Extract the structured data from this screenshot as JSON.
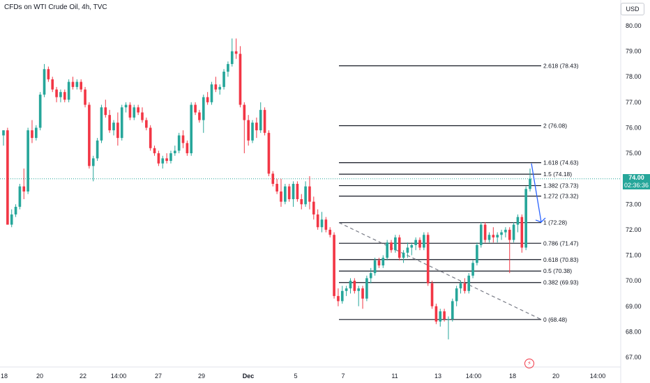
{
  "header": {
    "title": "CFDs on WTI Crude Oil, 4h, TVC",
    "currency": "USD"
  },
  "price_tag": {
    "price": "74.00",
    "countdown": "02:36:36"
  },
  "colors": {
    "up": "#26a69a",
    "down": "#f23645",
    "fib": "#131722",
    "trend": "#787b86",
    "arrow": "#2962ff"
  },
  "icons": {
    "bolt": "lightning-bolt-icon"
  },
  "chart_data": {
    "type": "candlestick",
    "symbol": "CFDs on WTI Crude Oil",
    "timeframe": "4h",
    "ylim": [
      66.8,
      80.2
    ],
    "y_ticks": [
      "67.00",
      "68.00",
      "69.00",
      "70.00",
      "71.00",
      "72.00",
      "73.00",
      "74.00",
      "75.00",
      "76.00",
      "77.00",
      "78.00",
      "79.00",
      "80.00"
    ],
    "x_ticks": [
      "18",
      "20",
      "22",
      "14:00",
      "27",
      "29",
      "Dec",
      "5",
      "7",
      "11",
      "13",
      "14:00",
      "18",
      "20",
      "14:00"
    ],
    "last_price": 74.0,
    "fibonacci": [
      {
        "label": "0 (68.48)",
        "level": 68.48
      },
      {
        "label": "0.382 (69.93)",
        "level": 69.93
      },
      {
        "label": "0.5 (70.38)",
        "level": 70.38
      },
      {
        "label": "0.618 (70.83)",
        "level": 70.83
      },
      {
        "label": "0.786 (71.47)",
        "level": 71.47
      },
      {
        "label": "1 (72.28)",
        "level": 72.28
      },
      {
        "label": "1.272 (73.32)",
        "level": 73.32
      },
      {
        "label": "1.382 (73.73)",
        "level": 73.73
      },
      {
        "label": "1.5 (74.18)",
        "level": 74.18
      },
      {
        "label": "1.618 (74.63)",
        "level": 74.63
      },
      {
        "label": "2 (76.08)",
        "level": 76.08
      },
      {
        "label": "2.618 (78.43)",
        "level": 78.43
      }
    ],
    "trend_line": {
      "from": 72.28,
      "to": 68.48,
      "style": "dashed"
    },
    "projection_arrow": {
      "from": 74.6,
      "to": 72.3
    },
    "candles": [
      [
        75.7,
        75.9,
        75.3,
        75.9
      ],
      [
        75.9,
        76.0,
        72.2,
        72.2
      ],
      [
        72.2,
        72.8,
        72.1,
        72.6
      ],
      [
        72.6,
        73.0,
        72.5,
        72.9
      ],
      [
        72.9,
        73.8,
        72.8,
        73.7
      ],
      [
        73.7,
        74.4,
        73.2,
        73.5
      ],
      [
        73.5,
        76.0,
        73.4,
        75.9
      ],
      [
        75.9,
        76.3,
        75.4,
        75.6
      ],
      [
        75.6,
        76.1,
        75.5,
        76.0
      ],
      [
        76.0,
        77.4,
        75.9,
        77.3
      ],
      [
        77.3,
        78.5,
        77.2,
        78.3
      ],
      [
        78.3,
        78.4,
        77.8,
        77.9
      ],
      [
        77.9,
        78.0,
        77.4,
        77.5
      ],
      [
        77.5,
        77.6,
        77.0,
        77.2
      ],
      [
        77.2,
        77.5,
        77.0,
        77.4
      ],
      [
        77.4,
        77.5,
        77.0,
        77.1
      ],
      [
        77.1,
        77.9,
        77.0,
        77.8
      ],
      [
        77.8,
        78.0,
        77.5,
        77.6
      ],
      [
        77.6,
        77.9,
        77.5,
        77.8
      ],
      [
        77.8,
        77.9,
        77.4,
        77.5
      ],
      [
        77.5,
        77.6,
        76.8,
        76.9
      ],
      [
        76.9,
        77.0,
        74.4,
        74.5
      ],
      [
        74.5,
        74.9,
        73.9,
        74.8
      ],
      [
        74.8,
        75.6,
        74.7,
        75.5
      ],
      [
        75.5,
        76.9,
        75.4,
        76.8
      ],
      [
        76.8,
        77.1,
        76.4,
        76.5
      ],
      [
        76.5,
        76.7,
        75.8,
        75.9
      ],
      [
        75.9,
        76.3,
        75.7,
        76.2
      ],
      [
        76.2,
        76.6,
        75.3,
        75.6
      ],
      [
        75.6,
        76.9,
        75.5,
        76.8
      ],
      [
        76.8,
        77.0,
        76.6,
        76.9
      ],
      [
        76.9,
        77.0,
        76.3,
        76.4
      ],
      [
        76.4,
        76.9,
        76.3,
        76.8
      ],
      [
        76.8,
        76.9,
        76.5,
        76.6
      ],
      [
        76.6,
        76.8,
        76.2,
        76.3
      ],
      [
        76.3,
        76.4,
        75.9,
        76.0
      ],
      [
        76.0,
        76.1,
        75.1,
        75.2
      ],
      [
        75.2,
        75.3,
        74.9,
        75.0
      ],
      [
        75.0,
        75.1,
        74.5,
        74.6
      ],
      [
        74.6,
        74.9,
        74.4,
        74.8
      ],
      [
        74.8,
        75.0,
        74.6,
        74.7
      ],
      [
        74.7,
        75.1,
        74.6,
        75.0
      ],
      [
        75.0,
        75.3,
        74.9,
        75.1
      ],
      [
        75.1,
        75.8,
        75.0,
        75.7
      ],
      [
        75.7,
        75.9,
        75.2,
        75.4
      ],
      [
        75.4,
        75.5,
        74.9,
        75.0
      ],
      [
        75.0,
        77.0,
        74.9,
        76.9
      ],
      [
        76.9,
        77.0,
        76.5,
        76.6
      ],
      [
        76.6,
        76.7,
        76.2,
        76.3
      ],
      [
        76.3,
        77.3,
        75.8,
        77.2
      ],
      [
        77.2,
        77.4,
        76.9,
        77.0
      ],
      [
        77.0,
        77.8,
        76.9,
        77.7
      ],
      [
        77.7,
        78.0,
        77.4,
        77.5
      ],
      [
        77.5,
        77.7,
        77.3,
        77.6
      ],
      [
        77.6,
        78.3,
        77.5,
        78.2
      ],
      [
        78.2,
        78.6,
        78.0,
        78.5
      ],
      [
        78.5,
        79.5,
        78.4,
        79.0
      ],
      [
        79.0,
        79.5,
        78.7,
        78.9
      ],
      [
        78.9,
        79.2,
        76.8,
        76.9
      ],
      [
        76.9,
        77.0,
        75.0,
        76.3
      ],
      [
        76.3,
        76.5,
        75.3,
        75.5
      ],
      [
        75.5,
        76.3,
        75.4,
        76.2
      ],
      [
        76.2,
        76.4,
        75.6,
        75.9
      ],
      [
        75.9,
        77.0,
        75.8,
        76.7
      ],
      [
        76.7,
        76.8,
        75.7,
        75.8
      ],
      [
        75.8,
        75.9,
        74.1,
        74.2
      ],
      [
        74.2,
        74.3,
        73.7,
        73.8
      ],
      [
        73.8,
        74.0,
        73.4,
        73.5
      ],
      [
        73.5,
        74.0,
        72.9,
        73.1
      ],
      [
        73.1,
        73.8,
        73.0,
        73.7
      ],
      [
        73.7,
        73.8,
        73.1,
        73.2
      ],
      [
        73.2,
        73.9,
        72.9,
        73.8
      ],
      [
        73.8,
        73.9,
        73.1,
        73.2
      ],
      [
        73.2,
        73.4,
        72.8,
        73.0
      ],
      [
        73.0,
        73.9,
        72.9,
        73.7
      ],
      [
        73.7,
        74.1,
        72.8,
        73.1
      ],
      [
        73.1,
        73.3,
        72.4,
        72.6
      ],
      [
        72.6,
        72.8,
        72.0,
        72.1
      ],
      [
        72.1,
        72.7,
        71.9,
        72.4
      ],
      [
        72.4,
        72.5,
        71.9,
        72.0
      ],
      [
        72.0,
        72.1,
        71.7,
        71.8
      ],
      [
        71.8,
        71.9,
        69.3,
        69.4
      ],
      [
        69.4,
        69.7,
        69.0,
        69.2
      ],
      [
        69.2,
        69.8,
        69.1,
        69.6
      ],
      [
        69.6,
        69.8,
        69.4,
        69.7
      ],
      [
        69.7,
        70.1,
        69.5,
        70.0
      ],
      [
        70.0,
        70.1,
        69.5,
        69.6
      ],
      [
        69.6,
        69.8,
        69.0,
        69.7
      ],
      [
        69.7,
        69.8,
        68.9,
        69.3
      ],
      [
        69.3,
        70.2,
        69.2,
        70.1
      ],
      [
        70.1,
        70.5,
        69.9,
        70.3
      ],
      [
        70.3,
        70.9,
        70.2,
        70.8
      ],
      [
        70.8,
        70.9,
        70.5,
        70.6
      ],
      [
        70.6,
        71.0,
        70.5,
        70.9
      ],
      [
        70.9,
        71.6,
        70.8,
        71.5
      ],
      [
        71.5,
        71.6,
        71.1,
        71.2
      ],
      [
        71.2,
        71.8,
        71.1,
        71.7
      ],
      [
        71.7,
        71.8,
        70.8,
        70.9
      ],
      [
        70.9,
        71.2,
        70.7,
        71.1
      ],
      [
        71.1,
        71.5,
        70.9,
        71.3
      ],
      [
        71.3,
        71.5,
        71.0,
        71.4
      ],
      [
        71.4,
        71.7,
        71.2,
        71.6
      ],
      [
        71.6,
        71.7,
        71.2,
        71.3
      ],
      [
        71.3,
        71.9,
        71.2,
        71.8
      ],
      [
        71.8,
        71.9,
        69.8,
        69.9
      ],
      [
        69.9,
        70.0,
        68.9,
        69.0
      ],
      [
        69.0,
        69.1,
        68.3,
        68.4
      ],
      [
        68.4,
        68.9,
        68.2,
        68.8
      ],
      [
        68.8,
        68.9,
        68.4,
        68.5
      ],
      [
        68.5,
        68.6,
        67.7,
        68.5
      ],
      [
        68.5,
        69.3,
        68.4,
        69.2
      ],
      [
        69.2,
        69.8,
        69.0,
        69.7
      ],
      [
        69.7,
        70.0,
        69.5,
        69.9
      ],
      [
        69.9,
        70.1,
        69.5,
        69.6
      ],
      [
        69.6,
        70.3,
        69.5,
        70.2
      ],
      [
        70.2,
        70.8,
        70.1,
        70.7
      ],
      [
        70.7,
        71.5,
        70.6,
        71.4
      ],
      [
        71.4,
        72.3,
        71.3,
        72.2
      ],
      [
        72.2,
        72.3,
        71.5,
        71.6
      ],
      [
        71.6,
        71.9,
        71.5,
        71.8
      ],
      [
        71.8,
        72.1,
        71.5,
        71.7
      ],
      [
        71.7,
        71.9,
        71.5,
        71.8
      ],
      [
        71.8,
        72.0,
        71.6,
        71.9
      ],
      [
        71.9,
        72.1,
        71.7,
        72.0
      ],
      [
        72.0,
        72.1,
        70.3,
        71.6
      ],
      [
        71.6,
        72.3,
        71.5,
        72.2
      ],
      [
        72.2,
        72.6,
        71.9,
        72.5
      ],
      [
        72.5,
        72.6,
        71.1,
        71.3
      ],
      [
        71.3,
        73.7,
        71.2,
        73.6
      ],
      [
        73.6,
        74.4,
        73.5,
        74.0
      ]
    ]
  }
}
